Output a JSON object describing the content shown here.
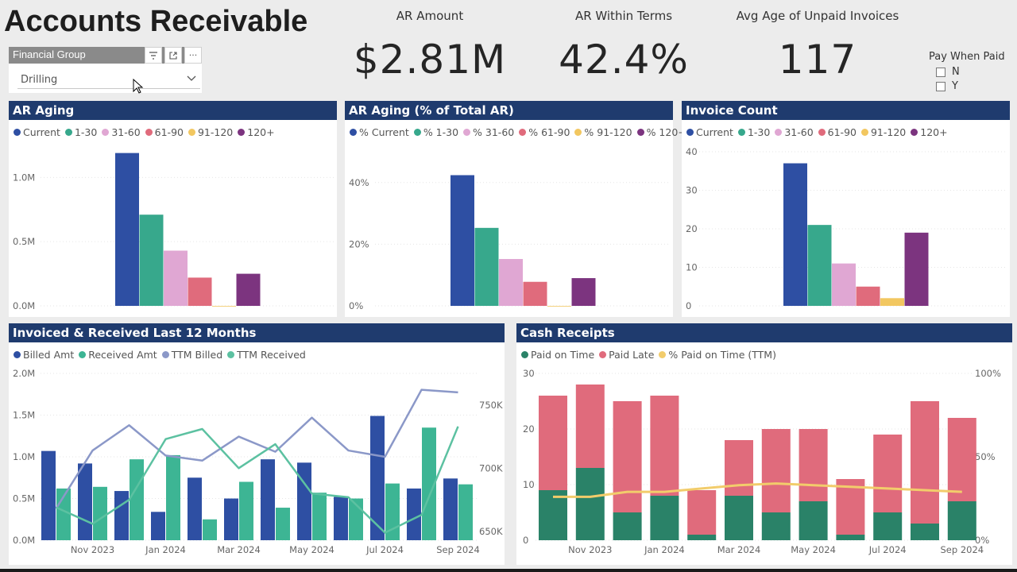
{
  "page": {
    "title": "Accounts Receivable"
  },
  "slicer": {
    "title": "Financial Group",
    "value": "Drilling",
    "more_label": "···"
  },
  "kpis": [
    {
      "label": "AR Amount",
      "value": "$2.81M"
    },
    {
      "label": "AR Within Terms",
      "value": "42.4%"
    },
    {
      "label": "Avg Age of Unpaid Invoices",
      "value": "117"
    }
  ],
  "pay_when_paid": {
    "title": "Pay When Paid",
    "options": [
      "N",
      "Y"
    ]
  },
  "colors": {
    "current": "#2e4fa3",
    "d1_30": "#37a88c",
    "d31_60": "#e0a7d3",
    "d61_90": "#e06b7c",
    "d91_120": "#f2c760",
    "d120": "#7c347f",
    "billed": "#2e4fa3",
    "received": "#3db594",
    "ttm_billed": "#8b98c8",
    "ttm_received": "#5cc1a1",
    "paid_on_time": "#2a8268",
    "paid_late": "#e06b7c",
    "pct_on_time": "#f2cc6b",
    "panel_header": "#1f3b6e"
  },
  "charts": {
    "ar_aging": {
      "title": "AR Aging",
      "legend": [
        "Current",
        "1-30",
        "31-60",
        "61-90",
        "91-120",
        "120+"
      ]
    },
    "ar_aging_pct": {
      "title": "AR Aging (% of Total AR)",
      "legend": [
        "% Current",
        "% 1-30",
        "% 31-60",
        "% 61-90",
        "% 91-120",
        "% 120+"
      ]
    },
    "invoice_count": {
      "title": "Invoice Count",
      "legend": [
        "Current",
        "1-30",
        "31-60",
        "61-90",
        "91-120",
        "120+"
      ]
    },
    "invoiced_received": {
      "title": "Invoiced & Received Last 12 Months",
      "legend": [
        "Billed Amt",
        "Received Amt",
        "TTM Billed",
        "TTM Received"
      ]
    },
    "cash_receipts": {
      "title": "Cash Receipts",
      "legend": [
        "Paid on Time",
        "Paid Late",
        "% Paid on Time (TTM)"
      ]
    }
  },
  "chart_data": [
    {
      "id": "ar_aging",
      "type": "bar",
      "title": "AR Aging",
      "categories": [
        "Current",
        "1-30",
        "31-60",
        "61-90",
        "91-120",
        "120+"
      ],
      "values": [
        1.19,
        0.71,
        0.43,
        0.22,
        0.0,
        0.25
      ],
      "ylim": [
        0,
        1.2
      ],
      "yticks": [
        0,
        0.5,
        1.0
      ],
      "ytick_labels": [
        "0.0M",
        "0.5M",
        "1.0M"
      ]
    },
    {
      "id": "ar_aging_pct",
      "type": "bar",
      "title": "AR Aging (% of Total AR)",
      "categories": [
        "% Current",
        "% 1-30",
        "% 31-60",
        "% 61-90",
        "% 91-120",
        "% 120+"
      ],
      "values": [
        42.4,
        25.3,
        15.2,
        7.8,
        0.0,
        9.0
      ],
      "ylim": [
        0,
        50
      ],
      "yticks": [
        0,
        20,
        40
      ],
      "ytick_labels": [
        "0%",
        "20%",
        "40%"
      ]
    },
    {
      "id": "invoice_count",
      "type": "bar",
      "title": "Invoice Count",
      "categories": [
        "Current",
        "1-30",
        "31-60",
        "61-90",
        "91-120",
        "120+"
      ],
      "values": [
        37,
        21,
        11,
        5,
        2,
        19
      ],
      "ylim": [
        0,
        40
      ],
      "yticks": [
        0,
        10,
        20,
        30,
        40
      ],
      "ytick_labels": [
        "0",
        "10",
        "20",
        "30",
        "40"
      ]
    },
    {
      "id": "invoiced_received",
      "type": "bar",
      "title": "Invoiced & Received Last 12 Months",
      "categories": [
        "Oct 2023",
        "Nov 2023",
        "Dec 2023",
        "Jan 2024",
        "Feb 2024",
        "Mar 2024",
        "Apr 2024",
        "May 2024",
        "Jun 2024",
        "Jul 2024",
        "Aug 2024",
        "Sep 2024"
      ],
      "xtick_labels": [
        "Nov 2023",
        "Jan 2024",
        "Mar 2024",
        "May 2024",
        "Jul 2024",
        "Sep 2024"
      ],
      "series": [
        {
          "name": "Billed Amt",
          "axis": "left",
          "type": "bar",
          "values": [
            1.07,
            0.92,
            0.59,
            0.34,
            0.75,
            0.5,
            0.97,
            0.93,
            0.52,
            1.49,
            0.62,
            0.74
          ]
        },
        {
          "name": "Received Amt",
          "axis": "left",
          "type": "bar",
          "values": [
            0.62,
            0.64,
            0.97,
            1.02,
            0.25,
            0.7,
            0.39,
            0.57,
            0.5,
            0.68,
            1.35,
            0.67
          ]
        },
        {
          "name": "TTM Billed",
          "axis": "right",
          "type": "line",
          "values": [
            668,
            714,
            734,
            710,
            706,
            725,
            713,
            740,
            714,
            709,
            762,
            760
          ]
        },
        {
          "name": "TTM Received",
          "axis": "right",
          "type": "line",
          "values": [
            669,
            656,
            675,
            723,
            731,
            700,
            719,
            680,
            677,
            649,
            663,
            733
          ]
        }
      ],
      "ylim_left": [
        0,
        2.0
      ],
      "yticks_left": [
        "0.0M",
        "0.5M",
        "1.0M",
        "1.5M",
        "2.0M"
      ],
      "ylim_right": [
        643,
        775
      ],
      "yticks_right_values": [
        650,
        700,
        750
      ],
      "yticks_right": [
        "650K",
        "700K",
        "750K"
      ]
    },
    {
      "id": "cash_receipts",
      "type": "bar",
      "title": "Cash Receipts",
      "stacked": true,
      "categories": [
        "Oct 2023",
        "Nov 2023",
        "Dec 2023",
        "Jan 2024",
        "Feb 2024",
        "Mar 2024",
        "Apr 2024",
        "May 2024",
        "Jun 2024",
        "Jul 2024",
        "Aug 2024",
        "Sep 2024"
      ],
      "xtick_labels": [
        "Nov 2023",
        "Jan 2024",
        "Mar 2024",
        "May 2024",
        "Jul 2024",
        "Sep 2024"
      ],
      "series": [
        {
          "name": "Paid on Time",
          "axis": "left",
          "values": [
            9,
            13,
            5,
            8,
            1,
            8,
            5,
            7,
            1,
            5,
            3,
            7
          ]
        },
        {
          "name": "Paid Late",
          "axis": "left",
          "values": [
            17,
            15,
            20,
            18,
            8,
            10,
            15,
            13,
            10,
            14,
            22,
            15
          ]
        },
        {
          "name": "% Paid on Time (TTM)",
          "axis": "right",
          "type": "line",
          "values": [
            26,
            26,
            29,
            29,
            31,
            33,
            34,
            33,
            32,
            31,
            30,
            29
          ]
        }
      ],
      "ylim_left": [
        0,
        30
      ],
      "yticks_left": [
        "0",
        "10",
        "20",
        "30"
      ],
      "ylim_right": [
        0,
        100
      ],
      "yticks_right": [
        "0%",
        "50%",
        "100%"
      ]
    }
  ]
}
